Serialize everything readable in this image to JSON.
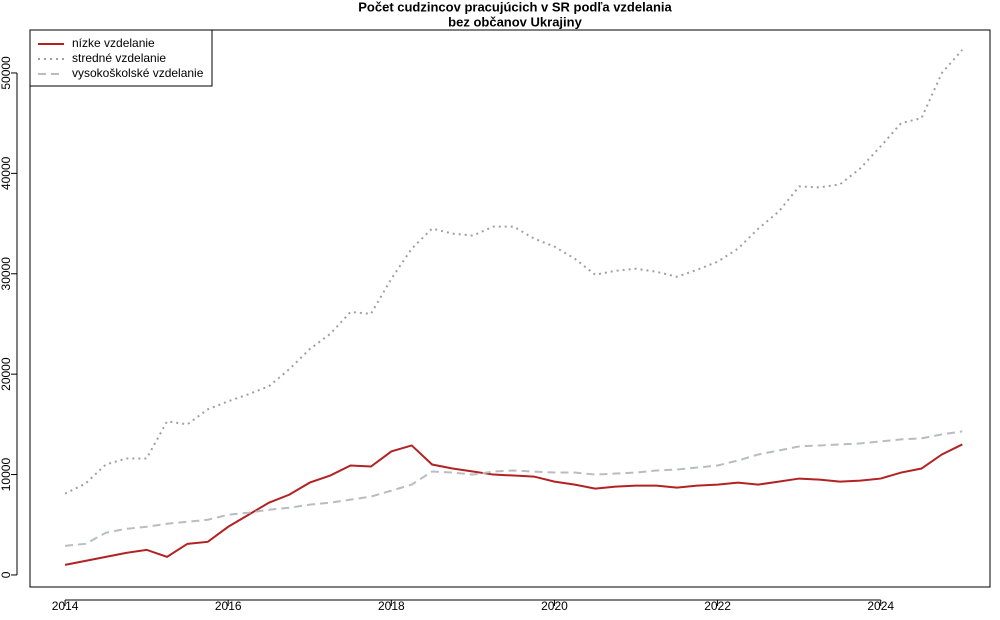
{
  "chart_data": {
    "type": "line",
    "title": "Počet cudzincov pracujúcich v SR podľa vzdelania",
    "subtitle": "bez občanov Ukrajiny",
    "x": [
      2014,
      2014.25,
      2014.5,
      2014.75,
      2015,
      2015.25,
      2015.5,
      2015.75,
      2016,
      2016.25,
      2016.5,
      2016.75,
      2017,
      2017.25,
      2017.5,
      2017.75,
      2018,
      2018.25,
      2018.5,
      2018.75,
      2019,
      2019.25,
      2019.5,
      2019.75,
      2020,
      2020.25,
      2020.5,
      2020.75,
      2021,
      2021.25,
      2021.5,
      2021.75,
      2022,
      2022.25,
      2022.5,
      2022.75,
      2023,
      2023.25,
      2023.5,
      2023.75,
      2024,
      2024.25,
      2024.5,
      2024.75,
      2025
    ],
    "series": [
      {
        "name": "nízke vzdelanie",
        "color": "#b22222",
        "dash": "solid",
        "values": [
          1000,
          1400,
          1800,
          2200,
          2500,
          1800,
          3100,
          3300,
          4800,
          6000,
          7200,
          8000,
          9200,
          9900,
          10900,
          10800,
          12300,
          12900,
          11000,
          10600,
          10300,
          10000,
          9900,
          9800,
          9300,
          9000,
          8600,
          8800,
          8900,
          8900,
          8700,
          8900,
          9000,
          9200,
          9000,
          9300,
          9600,
          9500,
          9300,
          9400,
          9600,
          10200,
          10600,
          12000,
          13000
        ]
      },
      {
        "name": "stredné vzdelanie",
        "color": "#a0a0a0",
        "dash": "dotted",
        "values": [
          8100,
          9100,
          11000,
          11600,
          11600,
          15300,
          15000,
          16500,
          17300,
          18000,
          18800,
          20500,
          22500,
          24000,
          26200,
          26000,
          29500,
          32500,
          34500,
          34000,
          33800,
          34700,
          34700,
          33500,
          32700,
          31500,
          29900,
          30300,
          30500,
          30200,
          29700,
          30400,
          31200,
          32500,
          34500,
          36200,
          38700,
          38600,
          38900,
          40500,
          42700,
          45000,
          45500,
          50000,
          52300
        ]
      },
      {
        "name": "vysokoškolské vzdelanie",
        "color": "#b8bcc4",
        "dash": "dashed",
        "values": [
          2900,
          3100,
          4200,
          4600,
          4800,
          5100,
          5300,
          5500,
          6000,
          6200,
          6500,
          6700,
          7000,
          7200,
          7500,
          7800,
          8400,
          9000,
          10300,
          10200,
          10000,
          10300,
          10400,
          10300,
          10200,
          10200,
          10000,
          10100,
          10200,
          10400,
          10500,
          10700,
          10900,
          11400,
          12000,
          12400,
          12800,
          12900,
          13000,
          13100,
          13300,
          13500,
          13600,
          14000,
          14300
        ]
      }
    ],
    "xlim": [
      2013.57,
      2025.34
    ],
    "xticks": [
      2014,
      2016,
      2018,
      2020,
      2022,
      2024
    ],
    "ylim": [
      -1200,
      54280
    ],
    "yticks": [
      0,
      10000,
      20000,
      30000,
      40000,
      50000
    ],
    "legend": "top-left"
  }
}
